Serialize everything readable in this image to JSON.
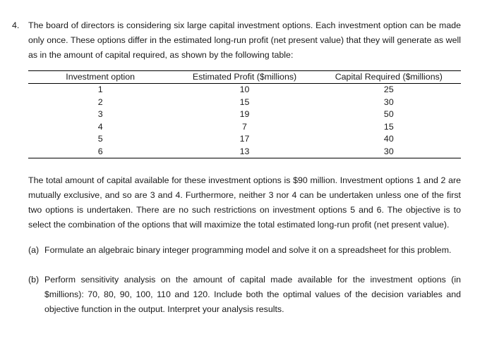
{
  "problem": {
    "number": "4.",
    "intro": "The board of directors is considering six large capital investment options. Each investment option can be made only once. These options differ in the estimated long-run profit (net present value) that they will generate as well as in the amount of capital required, as shown by the following table:",
    "table": {
      "headers": [
        "Investment option",
        "Estimated Profit ($millions)",
        "Capital Required ($millions)"
      ],
      "rows": [
        [
          "1",
          "10",
          "25"
        ],
        [
          "2",
          "15",
          "30"
        ],
        [
          "3",
          "19",
          "50"
        ],
        [
          "4",
          "7",
          "15"
        ],
        [
          "5",
          "17",
          "40"
        ],
        [
          "6",
          "13",
          "30"
        ]
      ]
    },
    "body": "The total amount of capital available for these investment options is $90 million. Investment options 1 and 2 are mutually exclusive, and so are 3 and 4. Furthermore, neither 3 nor 4 can be undertaken unless one of the first two options is undertaken. There are no such restrictions on investment options 5 and 6. The objective is to select the combination of the options that will maximize the total estimated long-run profit (net present value).",
    "parts": [
      {
        "label": "(a)",
        "text": "Formulate an algebraic binary integer programming model and solve it on a spreadsheet for this problem."
      },
      {
        "label": "(b)",
        "text": "Perform sensitivity analysis on the amount of capital made available for the investment options (in $millions): 70, 80, 90, 100, 110 and 120. Include both the optimal values of the decision variables and objective function in the output. Interpret your analysis results."
      }
    ]
  }
}
